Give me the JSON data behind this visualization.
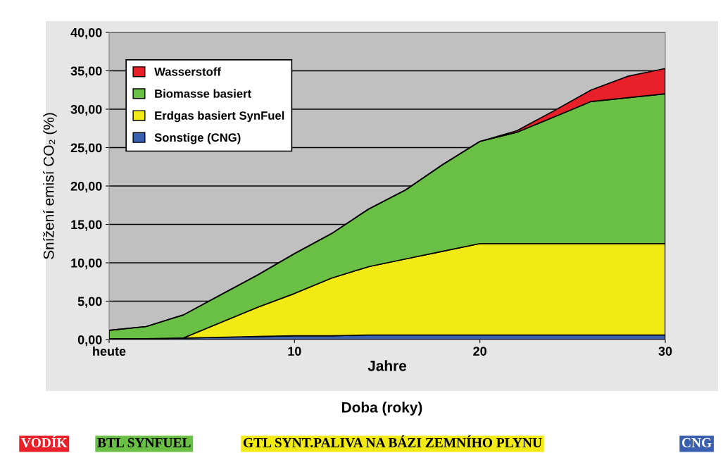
{
  "chart_data": {
    "type": "area",
    "stacked": true,
    "x": [
      0,
      2,
      4,
      6,
      8,
      10,
      12,
      14,
      16,
      18,
      20,
      22,
      24,
      26,
      28,
      30
    ],
    "series": [
      {
        "name": "Sonstige (CNG)",
        "color": "#3a5fb0",
        "values": [
          0.1,
          0.1,
          0.2,
          0.3,
          0.4,
          0.5,
          0.5,
          0.6,
          0.6,
          0.6,
          0.6,
          0.6,
          0.6,
          0.6,
          0.6,
          0.6
        ]
      },
      {
        "name": "Erdgas basiert SynFuel",
        "color": "#f2ea14",
        "values": [
          0,
          0,
          0,
          1.9,
          3.8,
          5.5,
          7.5,
          8.9,
          9.9,
          10.9,
          11.9,
          11.9,
          11.9,
          11.9,
          11.9,
          11.9
        ]
      },
      {
        "name": "Biomasse basiert",
        "color": "#6abf45",
        "values": [
          1.1,
          1.6,
          3.0,
          3.6,
          4.2,
          5.2,
          5.8,
          7.5,
          9.0,
          11.3,
          13.3,
          14.5,
          16.5,
          18.5,
          19.0,
          19.5
        ]
      },
      {
        "name": "Wasserstoff",
        "color": "#e8202a",
        "values": [
          0,
          0,
          0,
          0,
          0,
          0,
          0,
          0,
          0,
          0,
          0,
          0.2,
          0.8,
          1.5,
          2.8,
          3.3
        ]
      }
    ],
    "xlim": [
      0,
      30
    ],
    "xticks": [
      {
        "value": 0,
        "label": "heute"
      },
      10,
      20,
      30
    ],
    "ylim": [
      0,
      40
    ],
    "yticks": [
      {
        "value": 0,
        "label": "0,00"
      },
      {
        "value": 5,
        "label": "5,00"
      },
      {
        "value": 10,
        "label": "10,00"
      },
      {
        "value": 15,
        "label": "15,00"
      },
      {
        "value": 20,
        "label": "20,00"
      },
      {
        "value": 25,
        "label": "25,00"
      },
      {
        "value": 30,
        "label": "30,00"
      },
      {
        "value": 35,
        "label": "35,00"
      },
      {
        "value": 40,
        "label": "40,00"
      }
    ],
    "xlabel": "Jahre",
    "ylabel": "Snížení emisí CO₂ (%)",
    "grid": "y",
    "legend": "top left",
    "annotations": [
      "Doba (roky)",
      "VODÍK",
      "BTL SYNFUEL",
      "GTL SYNT.PALIVA NA BÁZI ZEMNÍHO PLYNU",
      "CNG"
    ]
  }
}
